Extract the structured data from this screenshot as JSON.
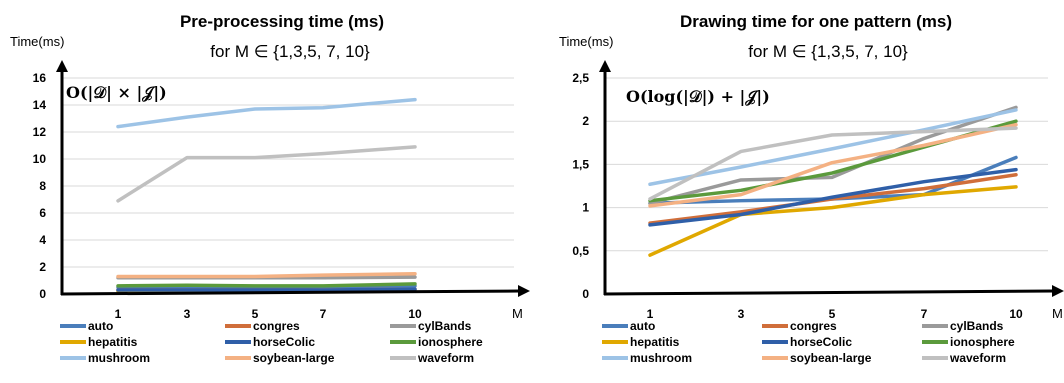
{
  "chart_data": [
    {
      "type": "line",
      "title": "Pre-processing time (ms)",
      "subtitle": "for M ∈  {1,3,5, 7, 10}",
      "ylabel": "Time(ms)",
      "xlabel": "M",
      "annotation": "O(|𝒟| × |𝒥|)",
      "categories": [
        "1",
        "3",
        "5",
        "7",
        "10"
      ],
      "yticks": [
        "0",
        "2",
        "4",
        "6",
        "8",
        "10",
        "12",
        "14",
        "16"
      ],
      "ylim": [
        0,
        16
      ],
      "grid": true,
      "legend_position": "bottom",
      "series": [
        {
          "name": "auto",
          "color": "#4a7ebb",
          "values": [
            0.5,
            0.5,
            0.5,
            0.55,
            0.6
          ]
        },
        {
          "name": "congres",
          "color": "#d06e3a",
          "values": [
            0.3,
            0.3,
            0.3,
            0.3,
            0.35
          ]
        },
        {
          "name": "cylBands",
          "color": "#9a9a9a",
          "values": [
            1.2,
            1.2,
            1.2,
            1.2,
            1.25
          ]
        },
        {
          "name": "hepatitis",
          "color": "#e0a800",
          "values": [
            0.2,
            0.2,
            0.2,
            0.2,
            0.2
          ]
        },
        {
          "name": "horseColic",
          "color": "#2f5fa8",
          "values": [
            0.3,
            0.3,
            0.3,
            0.3,
            0.35
          ]
        },
        {
          "name": "ionosphere",
          "color": "#5b9a3c",
          "values": [
            0.6,
            0.65,
            0.6,
            0.6,
            0.75
          ]
        },
        {
          "name": "mushroom",
          "color": "#9dc3e6",
          "values": [
            12.4,
            13.1,
            13.7,
            13.8,
            14.4
          ]
        },
        {
          "name": "soybean-large",
          "color": "#f4b183",
          "values": [
            1.3,
            1.3,
            1.3,
            1.4,
            1.5
          ]
        },
        {
          "name": "waveform",
          "color": "#c0c0c0",
          "values": [
            6.9,
            10.1,
            10.1,
            10.4,
            10.9
          ]
        }
      ]
    },
    {
      "type": "line",
      "title": "Drawing time for one pattern (ms)",
      "subtitle": "for M ∈  {1,3,5, 7, 10}",
      "ylabel": "Time(ms)",
      "xlabel": "M",
      "annotation": "O(log(|𝒟|) + |𝒥|)",
      "categories": [
        "1",
        "3",
        "5",
        "7",
        "10"
      ],
      "yticks": [
        "0",
        "0,5",
        "1",
        "1,5",
        "2",
        "2,5"
      ],
      "ylim": [
        0,
        2.5
      ],
      "grid": true,
      "legend_position": "bottom",
      "series": [
        {
          "name": "auto",
          "color": "#4a7ebb",
          "values": [
            1.05,
            1.08,
            1.1,
            1.15,
            1.58
          ]
        },
        {
          "name": "congres",
          "color": "#d06e3a",
          "values": [
            0.82,
            0.95,
            1.1,
            1.22,
            1.38
          ]
        },
        {
          "name": "cylBands",
          "color": "#9a9a9a",
          "values": [
            1.05,
            1.32,
            1.35,
            1.8,
            2.16
          ]
        },
        {
          "name": "hepatitis",
          "color": "#e0a800",
          "values": [
            0.45,
            0.92,
            1.0,
            1.15,
            1.24
          ]
        },
        {
          "name": "horseColic",
          "color": "#2f5fa8",
          "values": [
            0.8,
            0.92,
            1.12,
            1.3,
            1.44
          ]
        },
        {
          "name": "ionosphere",
          "color": "#5b9a3c",
          "values": [
            1.08,
            1.2,
            1.4,
            1.7,
            2.0
          ]
        },
        {
          "name": "mushroom",
          "color": "#9dc3e6",
          "values": [
            1.27,
            1.47,
            1.68,
            1.9,
            2.13
          ]
        },
        {
          "name": "soybean-large",
          "color": "#f4b183",
          "values": [
            1.02,
            1.15,
            1.52,
            1.72,
            1.96
          ]
        },
        {
          "name": "waveform",
          "color": "#c0c0c0",
          "values": [
            1.1,
            1.65,
            1.84,
            1.88,
            1.92
          ]
        }
      ]
    }
  ]
}
